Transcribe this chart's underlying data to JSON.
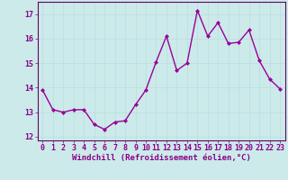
{
  "x": [
    0,
    1,
    2,
    3,
    4,
    5,
    6,
    7,
    8,
    9,
    10,
    11,
    12,
    13,
    14,
    15,
    16,
    17,
    18,
    19,
    20,
    21,
    22,
    23
  ],
  "y": [
    13.9,
    13.1,
    13.0,
    13.1,
    13.1,
    12.5,
    12.3,
    12.6,
    12.65,
    13.3,
    13.9,
    15.05,
    16.1,
    14.7,
    15.0,
    17.15,
    16.1,
    16.65,
    15.8,
    15.85,
    16.35,
    15.1,
    14.35,
    13.95
  ],
  "line_color": "#990099",
  "marker": "D",
  "marker_size": 2.0,
  "line_width": 1.0,
  "xlabel": "Windchill (Refroidissement éolien,°C)",
  "xlabel_fontsize": 6.5,
  "xlim": [
    -0.5,
    23.5
  ],
  "ylim": [
    11.85,
    17.5
  ],
  "yticks": [
    12,
    13,
    14,
    15,
    16,
    17
  ],
  "xticks": [
    0,
    1,
    2,
    3,
    4,
    5,
    6,
    7,
    8,
    9,
    10,
    11,
    12,
    13,
    14,
    15,
    16,
    17,
    18,
    19,
    20,
    21,
    22,
    23
  ],
  "grid_color": "#b8dede",
  "bg_color": "#cceaea",
  "tick_color": "#880088",
  "tick_fontsize": 6.0,
  "spine_color": "#660066",
  "fig_bg": "#cceaea"
}
